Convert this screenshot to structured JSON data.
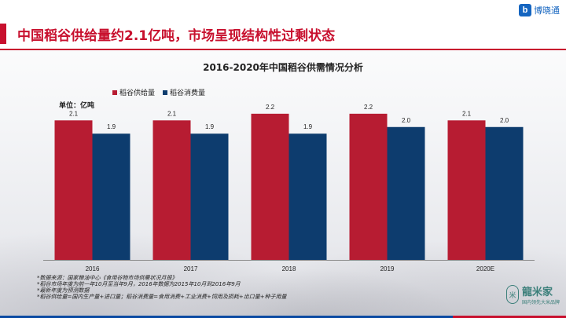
{
  "header": {
    "headline": "中国稻谷供给量约2.1亿吨，市场呈现结构性过剩状态",
    "brand_name": "博晓通",
    "brand_icon": "b-logo-icon"
  },
  "chart_data": {
    "type": "bar",
    "title": "2016-2020年中国稻谷供需情况分析",
    "unit_label": "单位：亿吨",
    "categories": [
      "2016",
      "2017",
      "2018",
      "2019",
      "2020E"
    ],
    "series": [
      {
        "name": "稻谷供给量",
        "color": "#b71c32",
        "values": [
          2.1,
          2.1,
          2.2,
          2.2,
          2.1
        ],
        "labels": [
          "2.1",
          "2.1",
          "2.2",
          "2.2",
          "2.1"
        ]
      },
      {
        "name": "稻谷消费量",
        "color": "#0d3c6e",
        "values": [
          1.9,
          1.9,
          1.9,
          2.0,
          2.0
        ],
        "labels": [
          "1.9",
          "1.9",
          "1.9",
          "2.0",
          "2.0"
        ]
      }
    ],
    "ylim": [
      0,
      2.47
    ],
    "grid": false,
    "legend": "top-left"
  },
  "footnotes": [
    "*数据来源：国家粮油中心《食用谷物市场供需状况月报》",
    "*稻谷市场年度为前一年10月至当年9月，2016年数据为2015年10月到2016年9月",
    "*最新年度为预测数据",
    "*稻谷供给量=国内生产量+进口量；稻谷消费量=食用消费+工业消费+饲用及损耗+出口量+种子用量"
  ],
  "logo_bottom": {
    "name": "龍米家",
    "tagline": "国内领先大米品牌",
    "seal_icon": "rice-seal-icon"
  }
}
